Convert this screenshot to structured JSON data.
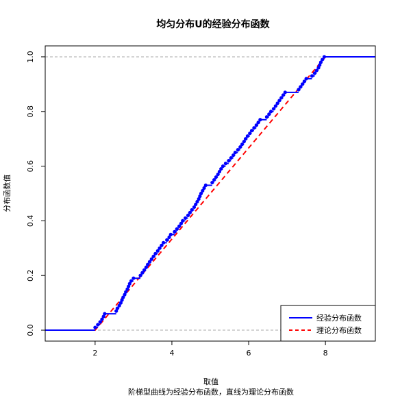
{
  "chart_data": {
    "type": "line",
    "title": "均匀分布U的经验分布函数",
    "xlabel": "取值",
    "subtitle": "阶梯型曲线为经验分布函数，直线为理论分布函数",
    "ylabel": "分布函数值",
    "xlim": [
      0.7,
      9.3
    ],
    "ylim": [
      -0.04,
      1.04
    ],
    "x_ticks": [
      "2",
      "4",
      "6",
      "8"
    ],
    "y_ticks": [
      "0.0",
      "0.2",
      "0.4",
      "0.6",
      "0.8",
      "1.0"
    ],
    "reference_lines": {
      "y": [
        0,
        1
      ],
      "style": "dashed",
      "color": "#aaaaaa"
    },
    "legend": {
      "position": "bottom-right",
      "entries": [
        {
          "label": "经验分布函数",
          "color": "#0000ff",
          "style": "solid"
        },
        {
          "label": "理论分布函数",
          "color": "#ff0000",
          "style": "dashed"
        }
      ]
    },
    "series": [
      {
        "name": "经验分布函数",
        "color": "#0000ff",
        "x": [
          2.0,
          2.07,
          2.13,
          2.18,
          2.22,
          2.25,
          2.55,
          2.58,
          2.63,
          2.67,
          2.7,
          2.73,
          2.77,
          2.8,
          2.84,
          2.87,
          2.9,
          2.94,
          3.0,
          3.18,
          3.23,
          3.28,
          3.33,
          3.37,
          3.42,
          3.47,
          3.52,
          3.57,
          3.63,
          3.68,
          3.73,
          3.78,
          3.87,
          3.93,
          3.97,
          4.07,
          4.13,
          4.19,
          4.24,
          4.28,
          4.35,
          4.42,
          4.47,
          4.52,
          4.58,
          4.62,
          4.66,
          4.7,
          4.73,
          4.76,
          4.8,
          4.84,
          4.88,
          5.05,
          5.1,
          5.15,
          5.2,
          5.24,
          5.28,
          5.33,
          5.4,
          5.48,
          5.54,
          5.6,
          5.65,
          5.72,
          5.78,
          5.83,
          5.88,
          5.92,
          5.97,
          6.03,
          6.08,
          6.14,
          6.2,
          6.25,
          6.3,
          6.47,
          6.53,
          6.58,
          6.65,
          6.7,
          6.75,
          6.8,
          6.85,
          6.9,
          6.95,
          7.3,
          7.35,
          7.4,
          7.45,
          7.5,
          7.65,
          7.72,
          7.77,
          7.82,
          7.85,
          7.88,
          7.92,
          7.97
        ],
        "values": [
          0.01,
          0.02,
          0.03,
          0.04,
          0.05,
          0.06,
          0.07,
          0.08,
          0.09,
          0.1,
          0.11,
          0.12,
          0.13,
          0.14,
          0.15,
          0.16,
          0.17,
          0.18,
          0.19,
          0.2,
          0.21,
          0.22,
          0.23,
          0.24,
          0.25,
          0.26,
          0.27,
          0.28,
          0.29,
          0.3,
          0.31,
          0.32,
          0.33,
          0.34,
          0.35,
          0.36,
          0.37,
          0.38,
          0.39,
          0.4,
          0.41,
          0.42,
          0.43,
          0.44,
          0.45,
          0.46,
          0.47,
          0.48,
          0.49,
          0.5,
          0.51,
          0.52,
          0.53,
          0.54,
          0.55,
          0.56,
          0.57,
          0.58,
          0.59,
          0.6,
          0.61,
          0.62,
          0.63,
          0.64,
          0.65,
          0.66,
          0.67,
          0.68,
          0.69,
          0.7,
          0.71,
          0.72,
          0.73,
          0.74,
          0.75,
          0.76,
          0.77,
          0.78,
          0.79,
          0.8,
          0.81,
          0.82,
          0.83,
          0.84,
          0.85,
          0.86,
          0.87,
          0.88,
          0.89,
          0.9,
          0.91,
          0.92,
          0.93,
          0.94,
          0.95,
          0.96,
          0.97,
          0.98,
          0.99,
          1.0
        ]
      },
      {
        "name": "理论分布函数",
        "color": "#ff0000",
        "x": [
          0.7,
          2.0,
          8.0,
          9.3
        ],
        "values": [
          0.0,
          0.0,
          1.0,
          1.0
        ]
      }
    ]
  }
}
